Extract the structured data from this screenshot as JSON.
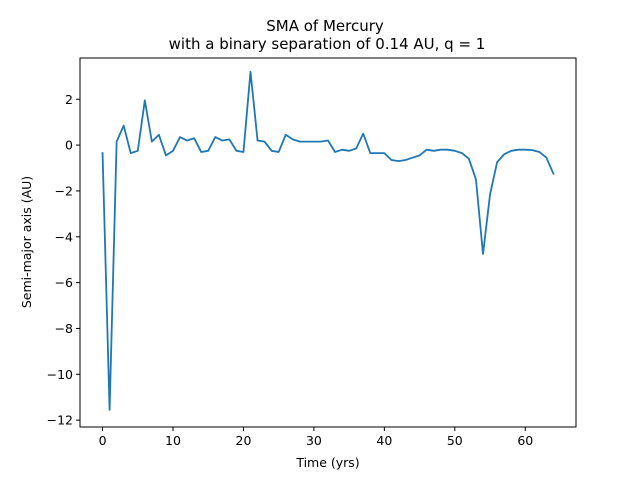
{
  "chart_data": {
    "type": "line",
    "title": "SMA of Mercury",
    "subtitle": "with a binary separation of 0.14 AU, q = 1",
    "xlabel": "Time (yrs)",
    "ylabel": "Semi-major axis (AU)",
    "xlim": [
      -3.2,
      67.2
    ],
    "ylim": [
      -12.3,
      3.8
    ],
    "xticks": [
      0,
      10,
      20,
      30,
      40,
      50,
      60
    ],
    "yticks": [
      2,
      0,
      -2,
      -4,
      -6,
      -8,
      -10,
      -12
    ],
    "grid": false,
    "line_color": "#1f77b4",
    "series": [
      {
        "x": [
          0,
          1,
          2,
          3,
          4,
          5,
          6,
          7,
          8,
          9,
          10,
          11,
          12,
          13,
          14,
          15,
          16,
          17,
          18,
          19,
          20,
          21,
          22,
          23,
          24,
          25,
          26,
          27,
          28,
          29,
          30,
          31,
          32,
          33,
          34,
          35,
          36,
          37,
          38,
          39,
          40,
          41,
          42,
          43,
          44,
          45,
          46,
          47,
          48,
          49,
          50,
          51,
          52,
          53,
          54,
          55,
          56,
          57,
          58,
          59,
          60,
          61,
          62,
          63,
          64
        ],
        "values": [
          -0.35,
          -11.55,
          0.15,
          0.85,
          -0.35,
          -0.25,
          1.95,
          0.15,
          0.45,
          -0.45,
          -0.25,
          0.35,
          0.2,
          0.3,
          -0.3,
          -0.25,
          0.35,
          0.2,
          0.25,
          -0.25,
          -0.3,
          3.2,
          0.2,
          0.15,
          -0.25,
          -0.3,
          0.45,
          0.25,
          0.15,
          0.15,
          0.15,
          0.15,
          0.2,
          -0.3,
          -0.2,
          -0.25,
          -0.15,
          0.5,
          -0.35,
          -0.35,
          -0.35,
          -0.65,
          -0.7,
          -0.65,
          -0.55,
          -0.45,
          -0.2,
          -0.25,
          -0.2,
          -0.2,
          -0.25,
          -0.35,
          -0.6,
          -1.5,
          -4.75,
          -2.15,
          -0.75,
          -0.4,
          -0.25,
          -0.2,
          -0.2,
          -0.22,
          -0.3,
          -0.55,
          -1.25
        ]
      }
    ]
  }
}
